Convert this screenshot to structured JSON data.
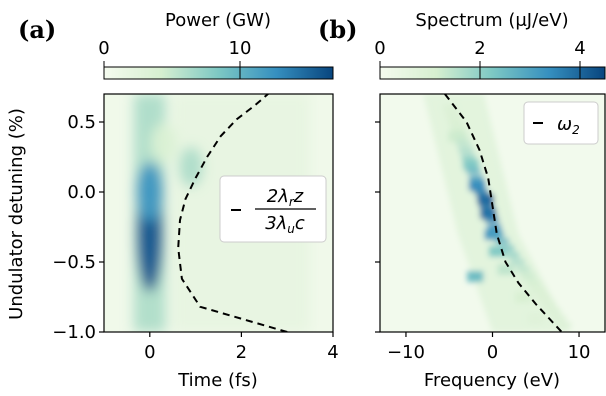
{
  "chart_data": [
    {
      "panel": "(a)",
      "type": "heatmap",
      "xlabel": "Time (fs)",
      "ylabel": "Undulator detuning (%)",
      "xticks": [
        "0",
        "2",
        "4"
      ],
      "yticks": [
        "0.5",
        "0.0",
        "−0.5",
        "−1.0"
      ],
      "xlim": [
        -1,
        4
      ],
      "ylim": [
        -1.0,
        0.7
      ],
      "colorbar": {
        "label": "Power (GW)",
        "ticks": [
          "0",
          "10"
        ],
        "range": [
          0,
          14
        ]
      },
      "legend": {
        "entry": "2λrz / 3λuc",
        "numerator": "2λ",
        "numerator_sub": "r",
        "numerator_tail": "z",
        "denominator": "3λ",
        "denominator_sub": "u",
        "denominator_tail": "c"
      },
      "dashed_curve": {
        "x": [
          3.0,
          1.1,
          0.7,
          0.65,
          0.75,
          1.5,
          2.5,
          2.0,
          1.5,
          0.9,
          0.65,
          0.65
        ],
        "y": [
          -1.0,
          -0.82,
          -0.62,
          -0.4,
          -0.1,
          0.1,
          0.7,
          0.55,
          0.4,
          0.2,
          0.0,
          -0.2
        ]
      },
      "hotspots": [
        {
          "t": 0.0,
          "d": -0.3,
          "p": 13
        },
        {
          "t": 0.0,
          "d": 0.0,
          "p": 10
        },
        {
          "t": 0.0,
          "d": 0.55,
          "p": 5
        },
        {
          "t": 0.9,
          "d": 0.18,
          "p": 5
        },
        {
          "t": 0.3,
          "d": 0.35,
          "p": 3
        }
      ]
    },
    {
      "panel": "(b)",
      "type": "heatmap",
      "xlabel": "Frequency (eV)",
      "xticks": [
        "−10",
        "0",
        "10"
      ],
      "xlim": [
        -13,
        13
      ],
      "ylim": [
        -1.0,
        0.7
      ],
      "colorbar": {
        "label": "Spectrum (μJ/eV)",
        "ticks": [
          "0",
          "2",
          "4"
        ],
        "range": [
          0,
          4.5
        ]
      },
      "legend": {
        "entry": "ω2",
        "symbol": "ω",
        "sub": "2"
      },
      "dashed_curve": {
        "x": [
          -5.5,
          -3,
          -1.5,
          -0.5,
          0,
          0.5,
          1.5,
          3,
          5,
          8
        ],
        "y": [
          0.7,
          0.5,
          0.3,
          0.1,
          -0.1,
          -0.3,
          -0.5,
          -0.65,
          -0.8,
          -1.0
        ]
      },
      "streak": [
        {
          "f": -4.2,
          "d": 0.4,
          "s": 1.2
        },
        {
          "f": -2.5,
          "d": 0.2,
          "s": 2.0
        },
        {
          "f": -1.8,
          "d": 0.05,
          "s": 3.5
        },
        {
          "f": -0.8,
          "d": -0.05,
          "s": 4.3
        },
        {
          "f": -0.5,
          "d": -0.15,
          "s": 4.0
        },
        {
          "f": 0.0,
          "d": -0.3,
          "s": 3.2
        },
        {
          "f": 0.5,
          "d": -0.42,
          "s": 2.2
        },
        {
          "f": 1.5,
          "d": -0.55,
          "s": 1.4
        },
        {
          "f": -2.0,
          "d": -0.6,
          "s": 2.5
        },
        {
          "f": 3.5,
          "d": -0.75,
          "s": 1.0
        },
        {
          "f": 5.0,
          "d": -0.9,
          "s": 0.8
        }
      ]
    }
  ]
}
